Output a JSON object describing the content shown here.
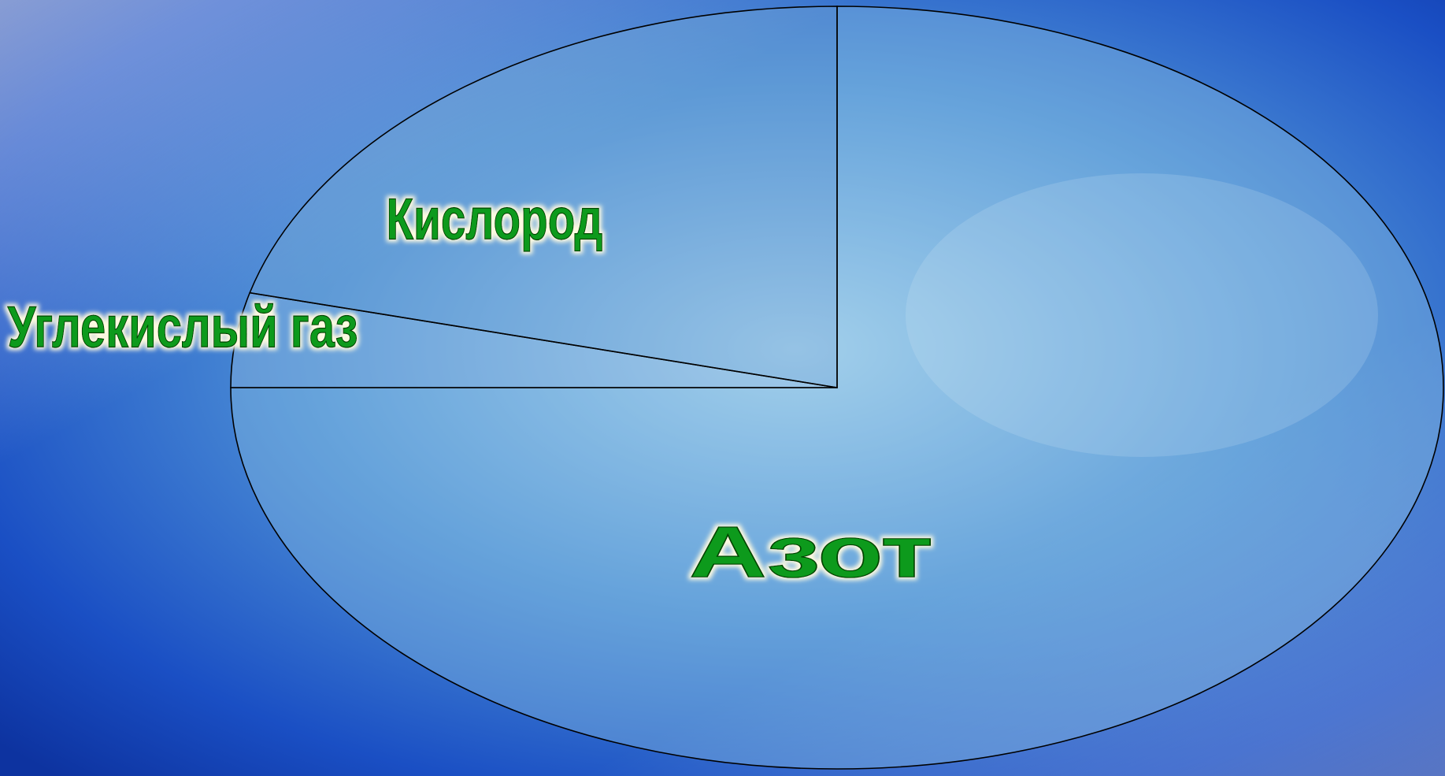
{
  "chart_data": {
    "type": "pie",
    "categories": [
      "Азот",
      "Углекислый газ",
      "Кислород"
    ],
    "values": [
      75,
      4,
      21
    ],
    "start_angle": 0,
    "direction": "clockwise"
  }
}
